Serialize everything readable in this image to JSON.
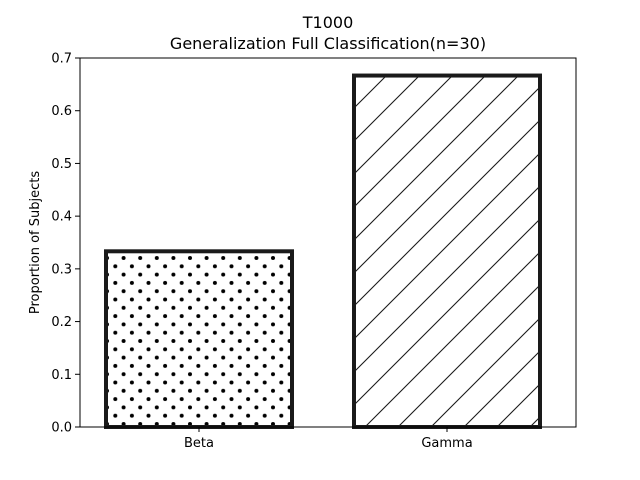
{
  "chart_data": {
    "type": "bar",
    "title": "T1000",
    "subtitle": "Generalization Full Classification(n=30)",
    "xlabel": "",
    "ylabel": "Proportion of Subjects",
    "categories": [
      "Beta",
      "Gamma"
    ],
    "values": [
      0.3333,
      0.6667
    ],
    "ylim": [
      0,
      0.7
    ],
    "yticks": [
      0.0,
      0.1,
      0.2,
      0.3,
      0.4,
      0.5,
      0.6,
      0.7
    ],
    "ytick_labels": [
      "0.0",
      "0.1",
      "0.2",
      "0.3",
      "0.4",
      "0.5",
      "0.6",
      "0.7"
    ],
    "bar_fill": "#ffffff",
    "bar_edge": "#1a1a1a",
    "hatches": [
      "dots",
      "diagonal"
    ],
    "grid": false,
    "legend": "none"
  }
}
